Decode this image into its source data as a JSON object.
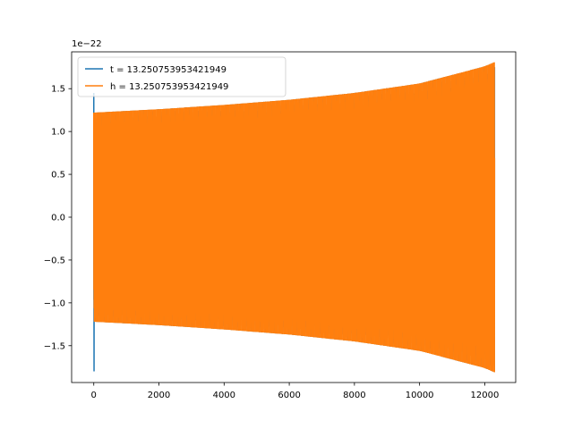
{
  "chart_data": {
    "type": "line",
    "title": "",
    "xlabel": "",
    "ylabel": "",
    "y_offset_text": "1e−22",
    "xlim": [
      -680,
      12950
    ],
    "ylim": [
      -1.93,
      1.93
    ],
    "x_ticks": [
      0,
      2000,
      4000,
      6000,
      8000,
      10000,
      12000
    ],
    "x_tick_labels": [
      "0",
      "2000",
      "4000",
      "6000",
      "8000",
      "10000",
      "12000"
    ],
    "y_ticks": [
      -1.5,
      -1.0,
      -0.5,
      0.0,
      0.5,
      1.0,
      1.5
    ],
    "y_tick_labels": [
      "−1.5",
      "−1.0",
      "−0.5",
      "0.0",
      "0.5",
      "1.0",
      "1.5"
    ],
    "grid": false,
    "legend_position": "top-left",
    "series": [
      {
        "name": "t = 13.250753953421949",
        "color": "#1f77b4",
        "style": "oscillation",
        "x_start": 0,
        "x_end": 12300,
        "spike_min": -1.8,
        "spike_max": 1.45,
        "envelope": {
          "x": [
            0,
            2000,
            4000,
            6000,
            8000,
            10000,
            12000,
            12300
          ],
          "amp": [
            1.22,
            1.26,
            1.31,
            1.37,
            1.45,
            1.56,
            1.76,
            1.81
          ]
        }
      },
      {
        "name": "h = 13.250753953421949",
        "color": "#ff7f0e",
        "style": "oscillation",
        "x_start": 0,
        "x_end": 12300,
        "envelope": {
          "x": [
            0,
            2000,
            4000,
            6000,
            8000,
            10000,
            12000,
            12300
          ],
          "amp": [
            1.22,
            1.26,
            1.31,
            1.37,
            1.45,
            1.56,
            1.76,
            1.81
          ]
        }
      }
    ]
  }
}
